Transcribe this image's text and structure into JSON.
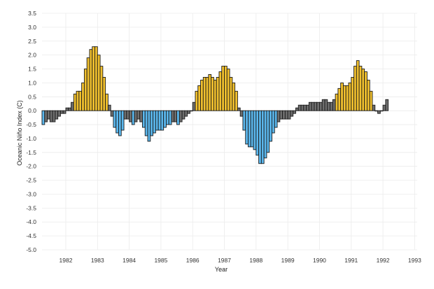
{
  "chart_data": {
    "type": "bar",
    "xlabel": "Year",
    "ylabel": "Oceanic Niño Index (C)",
    "ylim": [
      -5.0,
      3.5
    ],
    "xlim": [
      1981.25,
      1993.08
    ],
    "grid": true,
    "legend": "none",
    "y_ticks": [
      "3.5",
      "3.0",
      "2.5",
      "2.0",
      "1.5",
      "1.0",
      "0.5",
      "0.0",
      "-0.5",
      "-1.0",
      "-1.5",
      "-2.0",
      "-2.5",
      "-3.0",
      "-3.5",
      "-4.0",
      "-4.5",
      "-5.0"
    ],
    "x_ticks": [
      "1982",
      "1983",
      "1984",
      "1985",
      "1986",
      "1987",
      "1988",
      "1989",
      "1990",
      "1991",
      "1992",
      "1993"
    ],
    "colors": {
      "el_nino": "#f2c12e",
      "la_nina": "#5bb8ee",
      "neutral": "#6e6e6e",
      "outline": "#1a1a1a"
    },
    "series": [
      {
        "start_year": 1981,
        "start_month": 4,
        "values": [
          -0.5,
          -0.4,
          -0.3,
          -0.4,
          -0.4,
          -0.3,
          -0.2,
          -0.1,
          -0.1,
          0.1,
          0.1,
          0.3,
          0.6,
          0.7,
          0.7,
          1.0,
          1.5,
          1.9,
          2.2,
          2.3,
          2.3,
          2.0,
          1.6,
          1.2,
          0.6,
          0.2,
          -0.2,
          -0.6,
          -0.8,
          -0.9,
          -0.7,
          -0.3,
          -0.3,
          -0.4,
          -0.5,
          -0.4,
          -0.3,
          -0.4,
          -0.6,
          -0.9,
          -1.1,
          -0.9,
          -0.8,
          -0.7,
          -0.7,
          -0.7,
          -0.6,
          -0.5,
          -0.5,
          -0.4,
          -0.4,
          -0.5,
          -0.4,
          -0.3,
          -0.2,
          -0.1,
          0.0,
          0.3,
          0.7,
          0.9,
          1.1,
          1.2,
          1.2,
          1.3,
          1.2,
          1.1,
          1.2,
          1.4,
          1.6,
          1.6,
          1.5,
          1.2,
          1.0,
          0.7,
          0.1,
          -0.2,
          -0.7,
          -1.2,
          -1.3,
          -1.3,
          -1.4,
          -1.6,
          -1.9,
          -1.9,
          -1.7,
          -1.5,
          -1.1,
          -0.8,
          -0.6,
          -0.4,
          -0.3,
          -0.3,
          -0.3,
          -0.3,
          -0.2,
          -0.1,
          0.1,
          0.2,
          0.2,
          0.2,
          0.2,
          0.3,
          0.3,
          0.3,
          0.3,
          0.3,
          0.4,
          0.4,
          0.3,
          0.3,
          0.4,
          0.6,
          0.8,
          1.0,
          0.9,
          0.9,
          1.0,
          1.2,
          1.6,
          1.8,
          1.6,
          1.5,
          1.4,
          1.1,
          0.7,
          0.2,
          0.0,
          -0.1,
          0.0,
          0.2,
          0.4
        ]
      }
    ]
  }
}
